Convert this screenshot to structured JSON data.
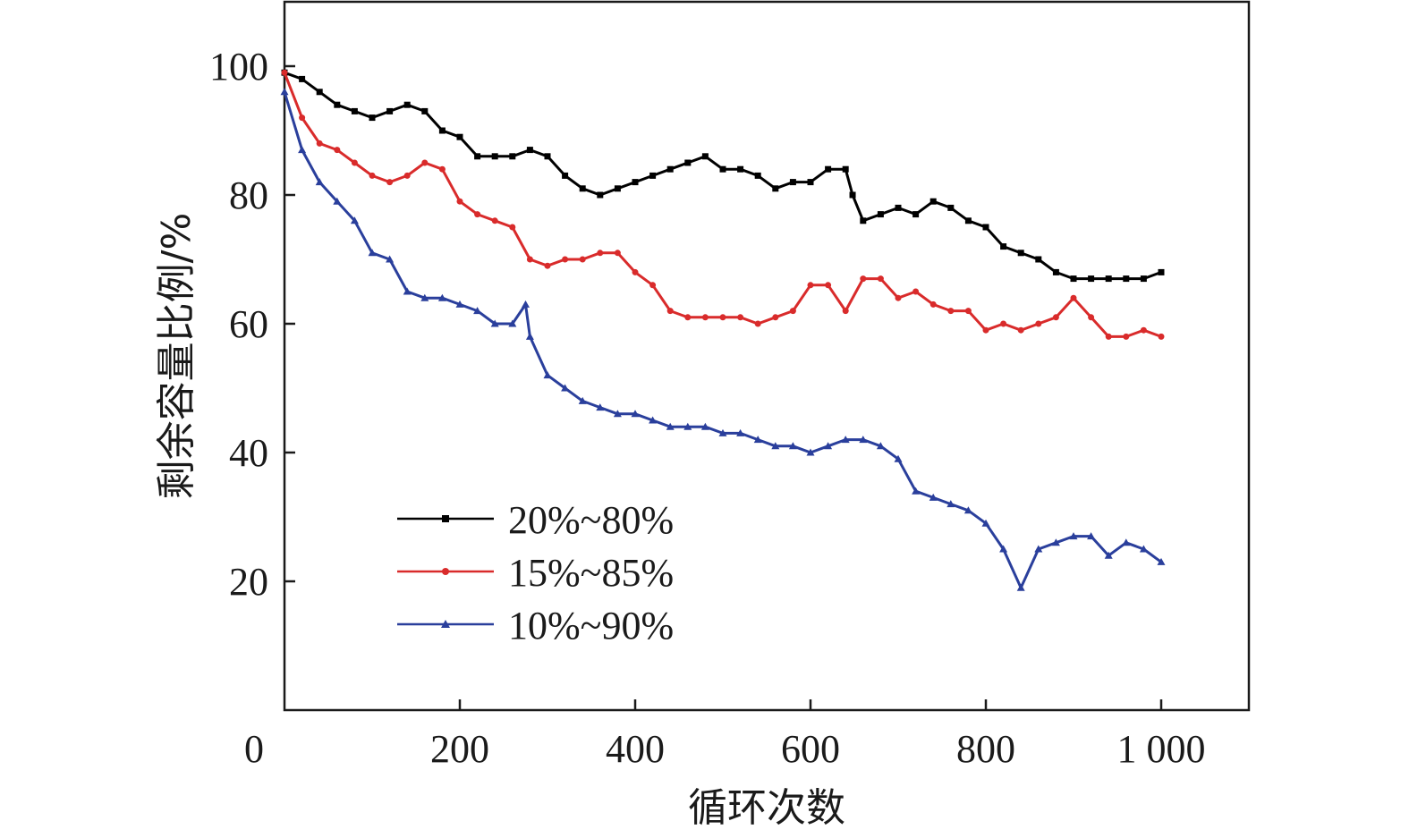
{
  "chart_data": {
    "type": "line",
    "xlabel": "循环次数",
    "ylabel": "剩余容量比例/%",
    "xlim": [
      0,
      1100
    ],
    "ylim": [
      0,
      110
    ],
    "x_ticks": [
      {
        "value": 0,
        "label": "0"
      },
      {
        "value": 200,
        "label": "200"
      },
      {
        "value": 400,
        "label": "400"
      },
      {
        "value": 600,
        "label": "600"
      },
      {
        "value": 800,
        "label": "800"
      },
      {
        "value": 1000,
        "label": "1 000"
      }
    ],
    "y_ticks": [
      {
        "value": 20,
        "label": "20"
      },
      {
        "value": 40,
        "label": "40"
      },
      {
        "value": 60,
        "label": "60"
      },
      {
        "value": 80,
        "label": "80"
      },
      {
        "value": 100,
        "label": "100"
      }
    ],
    "grid": false,
    "legend_position": "bottom-left",
    "series": [
      {
        "name": "20%~80%",
        "color": "#000000",
        "marker": "square",
        "x": [
          0,
          20,
          40,
          60,
          80,
          100,
          120,
          140,
          160,
          180,
          200,
          220,
          240,
          260,
          280,
          300,
          320,
          340,
          360,
          380,
          400,
          420,
          440,
          460,
          480,
          500,
          520,
          540,
          560,
          580,
          600,
          620,
          640,
          648,
          660,
          680,
          700,
          720,
          740,
          760,
          780,
          800,
          820,
          840,
          860,
          880,
          900,
          920,
          940,
          960,
          980,
          1000
        ],
        "values": [
          99,
          98,
          96,
          94,
          93,
          92,
          93,
          94,
          93,
          90,
          89,
          86,
          86,
          86,
          87,
          86,
          83,
          81,
          80,
          81,
          82,
          83,
          84,
          85,
          86,
          84,
          84,
          83,
          81,
          82,
          82,
          84,
          84,
          80,
          76,
          77,
          78,
          77,
          79,
          78,
          76,
          75,
          72,
          71,
          70,
          68,
          67,
          67,
          67,
          67,
          67,
          68
        ]
      },
      {
        "name": "15%~85%",
        "color": "#d92b2b",
        "marker": "circle",
        "x": [
          0,
          20,
          40,
          60,
          80,
          100,
          120,
          140,
          160,
          180,
          200,
          220,
          240,
          260,
          280,
          300,
          320,
          340,
          360,
          380,
          400,
          420,
          440,
          460,
          480,
          500,
          520,
          540,
          560,
          580,
          600,
          620,
          640,
          660,
          680,
          700,
          720,
          740,
          760,
          780,
          800,
          820,
          840,
          860,
          880,
          900,
          920,
          940,
          960,
          980,
          1000
        ],
        "values": [
          99,
          92,
          88,
          87,
          85,
          83,
          82,
          83,
          85,
          84,
          79,
          77,
          76,
          75,
          70,
          69,
          70,
          70,
          71,
          71,
          68,
          66,
          62,
          61,
          61,
          61,
          61,
          60,
          61,
          62,
          66,
          66,
          62,
          67,
          67,
          64,
          65,
          63,
          62,
          62,
          59,
          60,
          59,
          60,
          61,
          64,
          61,
          58,
          58,
          59,
          58
        ]
      },
      {
        "name": "10%~90%",
        "color": "#2a3f9c",
        "marker": "triangle",
        "x": [
          0,
          20,
          40,
          60,
          80,
          100,
          120,
          140,
          160,
          180,
          200,
          220,
          240,
          260,
          275,
          280,
          300,
          320,
          340,
          360,
          380,
          400,
          420,
          440,
          460,
          480,
          500,
          520,
          540,
          560,
          580,
          600,
          620,
          640,
          660,
          680,
          700,
          720,
          740,
          760,
          780,
          800,
          820,
          840,
          860,
          880,
          900,
          920,
          940,
          960,
          980,
          1000
        ],
        "values": [
          96,
          87,
          82,
          79,
          76,
          71,
          70,
          65,
          64,
          64,
          63,
          62,
          60,
          60,
          63,
          58,
          52,
          50,
          48,
          47,
          46,
          46,
          45,
          44,
          44,
          44,
          43,
          43,
          42,
          41,
          41,
          40,
          41,
          42,
          42,
          41,
          39,
          34,
          33,
          32,
          31,
          29,
          25,
          19,
          25,
          26,
          27,
          27,
          24,
          26,
          25,
          23
        ]
      }
    ]
  }
}
